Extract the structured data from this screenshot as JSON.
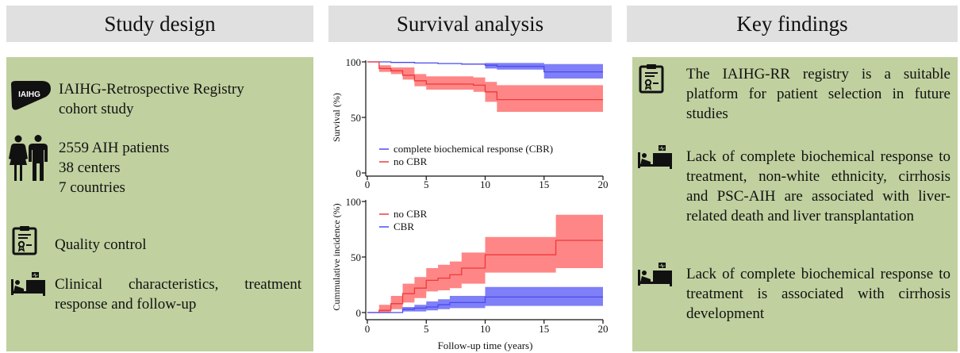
{
  "headers": {
    "study_design": "Study design",
    "survival_analysis": "Survival analysis",
    "key_findings": "Key findings"
  },
  "study_design": {
    "items": [
      {
        "icon": "iaihg-logo-icon",
        "logo_text": "IAIHG",
        "lines": [
          "IAIHG-Retrospective Registry",
          "cohort study"
        ]
      },
      {
        "icon": "people-icon",
        "lines": [
          "2559 AIH patients",
          "38 centers",
          "7 countries"
        ]
      },
      {
        "icon": "clipboard-certificate-icon",
        "lines": [
          "Quality control"
        ]
      },
      {
        "icon": "patient-bed-icon",
        "text": "Clinical characteristics, treatment response and follow-up"
      }
    ]
  },
  "key_findings": {
    "items": [
      {
        "icon": "clipboard-certificate-icon",
        "text": "The IAIHG-RR registry is a suitable platform for patient selection in future studies"
      },
      {
        "icon": "patient-bed-icon",
        "text": "Lack of complete biochemical response to treatment, non-white ethnicity, cirrhosis and PSC-AIH are associated with liver-related death and liver transplantation"
      },
      {
        "icon": "patient-bed-icon",
        "text": "Lack of complete biochemical response to treatment is associated with cirrhosis development"
      }
    ]
  },
  "colors": {
    "header_bg": "#e0e0e0",
    "panel_bg": "#c0d09f",
    "cbr_line": "#4a4aee",
    "cbr_band": "#7878f8",
    "nocbr_line": "#ee3a3a",
    "nocbr_band": "#ff7f7f"
  },
  "chart_data": [
    {
      "type": "line",
      "title": "",
      "xlabel": "",
      "ylabel": "Survival (%)",
      "xlim": [
        0,
        20
      ],
      "ylim": [
        0,
        100
      ],
      "xticks": [
        "0",
        "5",
        "10",
        "15",
        "20"
      ],
      "yticks": [
        "0",
        "50",
        "100"
      ],
      "grid": false,
      "legend_position": "bottom-left",
      "series": [
        {
          "name": "complete biochemical response (CBR)",
          "color": "#4a4aee",
          "band_color": "#7878f8",
          "steps": [
            [
              0,
              100
            ],
            [
              2,
              99.5
            ],
            [
              4,
              99
            ],
            [
              6,
              98.5
            ],
            [
              8,
              98
            ],
            [
              10,
              97
            ],
            [
              11,
              96
            ],
            [
              15,
              91
            ],
            [
              20,
              91
            ]
          ],
          "lower": [
            [
              0,
              100
            ],
            [
              10,
              94
            ],
            [
              11,
              93
            ],
            [
              15,
              85
            ],
            [
              20,
              85
            ]
          ],
          "upper": [
            [
              0,
              100
            ],
            [
              10,
              99
            ],
            [
              11,
              99
            ],
            [
              15,
              98
            ],
            [
              20,
              98
            ]
          ],
          "band_start": 10
        },
        {
          "name": "no CBR",
          "color": "#ee3a3a",
          "band_color": "#ff7f7f",
          "steps": [
            [
              0,
              100
            ],
            [
              1,
              94
            ],
            [
              2,
              92
            ],
            [
              3,
              88
            ],
            [
              4,
              83
            ],
            [
              5,
              80
            ],
            [
              9,
              79
            ],
            [
              10,
              73
            ],
            [
              11,
              66
            ],
            [
              20,
              66
            ]
          ],
          "lower": [
            [
              0,
              100
            ],
            [
              1,
              91
            ],
            [
              2,
              89
            ],
            [
              3,
              84
            ],
            [
              4,
              78
            ],
            [
              5,
              75
            ],
            [
              9,
              73
            ],
            [
              10,
              64
            ],
            [
              11,
              55
            ],
            [
              20,
              55
            ]
          ],
          "upper": [
            [
              0,
              100
            ],
            [
              1,
              97
            ],
            [
              2,
              95
            ],
            [
              3,
              95
            ],
            [
              4,
              89
            ],
            [
              5,
              87
            ],
            [
              9,
              86
            ],
            [
              10,
              82
            ],
            [
              11,
              79
            ],
            [
              20,
              79
            ]
          ],
          "band_start": 1
        }
      ]
    },
    {
      "type": "line",
      "title": "",
      "xlabel": "Follow-up time (years)",
      "ylabel": "Cummulative incidence (%)",
      "xlim": [
        0,
        20
      ],
      "ylim": [
        0,
        100
      ],
      "xticks": [
        "0",
        "5",
        "10",
        "15",
        "20"
      ],
      "yticks": [
        "0",
        "50",
        "100"
      ],
      "grid": false,
      "legend_position": "top-left",
      "series": [
        {
          "name": "no CBR",
          "color": "#ee3a3a",
          "band_color": "#ff7f7f",
          "steps": [
            [
              0,
              0
            ],
            [
              1,
              2
            ],
            [
              2,
              8
            ],
            [
              3,
              17
            ],
            [
              4,
              22
            ],
            [
              5,
              29
            ],
            [
              6,
              31
            ],
            [
              7,
              34
            ],
            [
              8,
              40
            ],
            [
              10,
              52
            ],
            [
              16,
              65
            ],
            [
              20,
              65
            ]
          ],
          "lower": [
            [
              0,
              0
            ],
            [
              1,
              0
            ],
            [
              2,
              3
            ],
            [
              3,
              9
            ],
            [
              4,
              13
            ],
            [
              5,
              19
            ],
            [
              6,
              20
            ],
            [
              7,
              22
            ],
            [
              8,
              26
            ],
            [
              10,
              36
            ],
            [
              16,
              40
            ],
            [
              20,
              40
            ]
          ],
          "upper": [
            [
              0,
              0
            ],
            [
              1,
              7
            ],
            [
              2,
              15
            ],
            [
              3,
              26
            ],
            [
              4,
              32
            ],
            [
              5,
              40
            ],
            [
              6,
              43
            ],
            [
              7,
              46
            ],
            [
              8,
              54
            ],
            [
              10,
              68
            ],
            [
              16,
              88
            ],
            [
              20,
              88
            ]
          ],
          "band_start": 1
        },
        {
          "name": "CBR",
          "color": "#4a4aee",
          "band_color": "#7878f8",
          "steps": [
            [
              0,
              0
            ],
            [
              1,
              0
            ],
            [
              3,
              3
            ],
            [
              4,
              4
            ],
            [
              5,
              5
            ],
            [
              6,
              7
            ],
            [
              7,
              9
            ],
            [
              10,
              14
            ],
            [
              20,
              14
            ]
          ],
          "lower": [
            [
              0,
              0
            ],
            [
              1,
              0
            ],
            [
              3,
              1
            ],
            [
              4,
              1
            ],
            [
              5,
              2
            ],
            [
              6,
              3
            ],
            [
              7,
              4
            ],
            [
              10,
              6
            ],
            [
              20,
              6
            ]
          ],
          "upper": [
            [
              0,
              0
            ],
            [
              1,
              1
            ],
            [
              3,
              5
            ],
            [
              4,
              7
            ],
            [
              5,
              10
            ],
            [
              6,
              12
            ],
            [
              7,
              15
            ],
            [
              10,
              23
            ],
            [
              20,
              23
            ]
          ],
          "band_start": 3
        }
      ]
    }
  ]
}
